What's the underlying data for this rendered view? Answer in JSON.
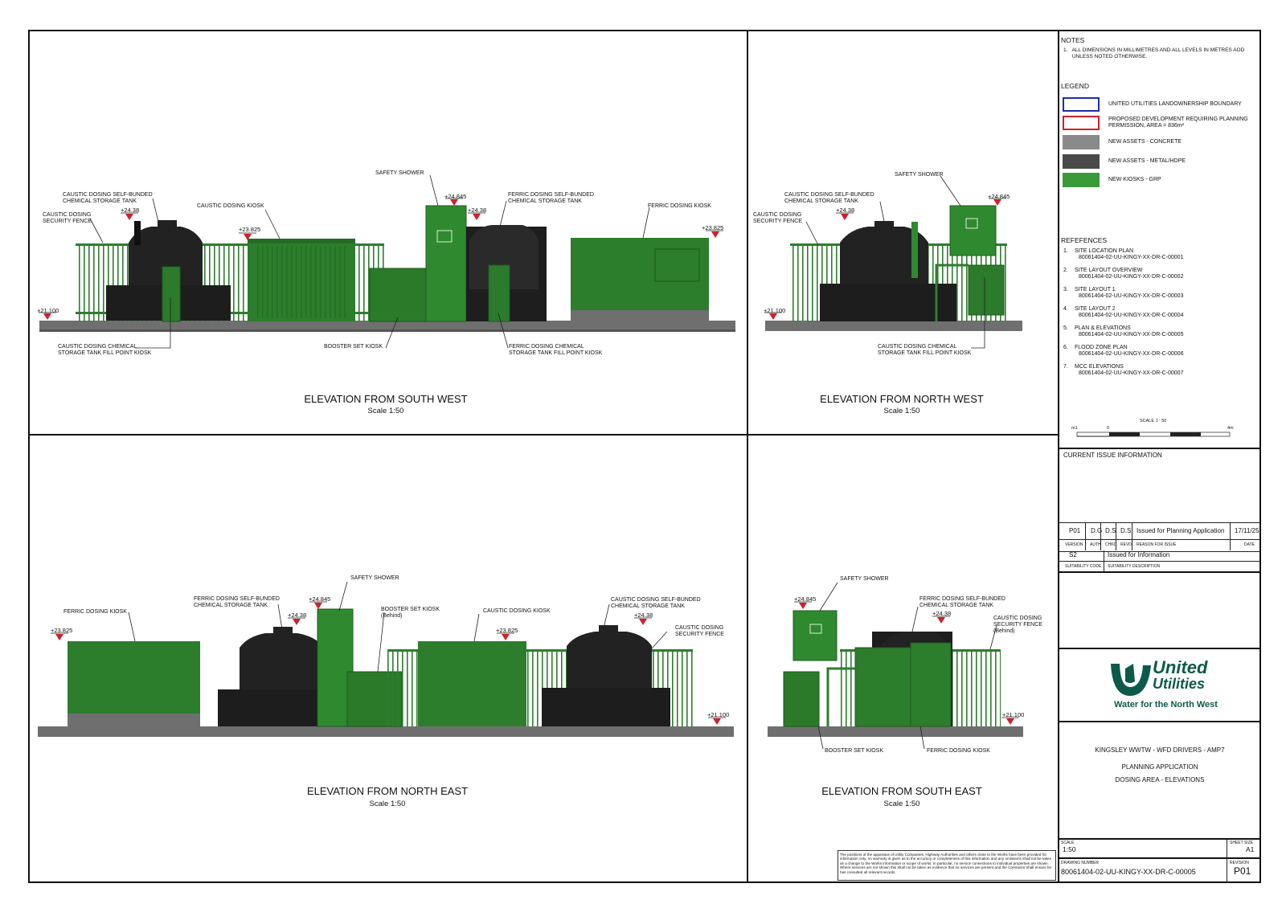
{
  "notes": {
    "heading": "NOTES",
    "items": [
      "1.   ALL DIMENSIONS IN MILLIMETRES AND ALL LEVELS IN METRES AOD\n      UNLESS NOTED OTHERWISE."
    ]
  },
  "legend": {
    "heading": "LEGEND",
    "colors": {
      "boundary": "#1a2fb0",
      "development": "#d0202a",
      "concrete": "#8a8a8a",
      "metal": "#4a4a4a",
      "grp": "#3a9a3a"
    },
    "items": [
      "UNITED UTILITIES LANDOWNERSHIP BOUNDARY",
      "PROPOSED DEVELOPMENT REQUIRING PLANNING\nPERMISSION, AREA = 836m²",
      "NEW ASSETS - CONCRETE",
      "NEW ASSETS - METAL/HDPE",
      "NEW KIOSKS - GRP"
    ]
  },
  "references": {
    "heading": "REFEFENCES",
    "items": [
      {
        "n": "1.",
        "title": "SITE LOCATION PLAN",
        "code": "80061404-02-UU-KINGY-XX-DR-C-00001"
      },
      {
        "n": "2.",
        "title": "SITE LAYOUT OVERVIEW",
        "code": "80061404-02-UU-KINGY-XX-DR-C-00002"
      },
      {
        "n": "3.",
        "title": "SITE LAYOUT 1",
        "code": "80061404-02-UU-KINGY-XX-DR-C-00003"
      },
      {
        "n": "4.",
        "title": "SITE LAYOUT 2",
        "code": "80061404-02-UU-KINGY-XX-DR-C-00004"
      },
      {
        "n": "5.",
        "title": "PLAN & ELEVATIONS",
        "code": "80061404-02-UU-KINGY-XX-DR-C-00005"
      },
      {
        "n": "6.",
        "title": "FLOOD ZONE PLAN",
        "code": "80061404-02-UU-KINGY-XX-DR-C-00006"
      },
      {
        "n": "7.",
        "title": "MCC ELEVATIONS",
        "code": "80061404-02-UU-KINGY-XX-DR-C-00007"
      }
    ]
  },
  "scalebar": {
    "label": "SCALE 1 : 50",
    "left": "m1",
    "zero": "0",
    "right": "4m"
  },
  "issue": {
    "heading": "CURRENT ISSUE INFORMATION",
    "version": "P01",
    "auth": "D.G",
    "chkd": "D.S",
    "revd": "D.S",
    "reason": "Issued for Planning Application",
    "date": "17/11/25",
    "h_version": "VERSION",
    "h_auth": "AUTH",
    "h_chkd": "CHKD",
    "h_revd": "REVD",
    "h_reason": "REASON FOR ISSUE",
    "h_date": "DATE",
    "suit_code": "S2",
    "suit_desc": "Issued for Information",
    "h_suit_code": "SUITABILITY CODE",
    "h_suit_desc": "SUITABILITY DESCRIPTION"
  },
  "logo": {
    "line1": "United",
    "line2": "Utilities",
    "tagline": "Water for the North West",
    "color": "#0d5a4a"
  },
  "project": {
    "line1": "KINGSLEY WWTW - WFD DRIVERS - AMP7",
    "line2": "PLANNING APPLICATION",
    "line3": "DOSING AREA - ELEVATIONS"
  },
  "titleblock": {
    "h_scale": "SCALE",
    "scale": "1:50",
    "h_sheet": "SHEET SIZE",
    "sheet": "A1",
    "h_drawing": "DRAWING NUMBER",
    "drawing": "80061404-02-UU-KINGY-XX-DR-C-00005",
    "h_revision": "REVISION",
    "revision": "P01"
  },
  "disclaimer": "The positions of the apparatus of Utility Companies, Highway Authorities and others close to the Works have been provided for information only, no warranty is given as to the accuracy or completeness of this information and any omissions shall not be taken as a change to the Works information or scope of works. In particular, no service connections to individual properties are shown. Where services are not shown this shall not be taken as evidence that no services are present and the Contractor shall ensure he has consulted all relevant records.",
  "views": {
    "sw": {
      "title": "ELEVATION FROM SOUTH WEST",
      "scale": "Scale 1:50",
      "labels": {
        "caustic_tank": "CAUSTIC DOSING SELF-BUNDED\nCHEMICAL STORAGE TANK",
        "caustic_fence": "CAUSTIC DOSING\nSECURITY FENCE",
        "caustic_kiosk": "CAUSTIC DOSING KIOSK",
        "safety_shower": "SAFETY SHOWER",
        "ferric_tank": "FERRIC DOSING SELF-BUNDED\nCHEMICAL STORAGE TANK",
        "ferric_kiosk": "FERRIC DOSING KIOSK",
        "caustic_fill": "CAUSTIC DOSING CHEMICAL\nSTORAGE TANK FILL POINT KIOSK",
        "booster": "BOOSTER SET KIOSK",
        "ferric_fill": "FERRIC DOSING CHEMICAL\nSTORAGE TANK FILL POINT KIOSK"
      },
      "levels": {
        "l1": "+24.38",
        "l2": "+23.825",
        "l3": "+24.845",
        "l4": "+24.38",
        "l5": "+23.825",
        "l6": "+21.100"
      }
    },
    "nw": {
      "title": "ELEVATION FROM NORTH WEST",
      "scale": "Scale 1:50",
      "labels": {
        "caustic_tank": "CAUSTIC DOSING SELF-BUNDED\nCHEMICAL STORAGE TANK",
        "caustic_fence": "CAUSTIC DOSING\nSECURITY FENCE",
        "safety_shower": "SAFETY SHOWER",
        "caustic_fill": "CAUSTIC DOSING CHEMICAL\nSTORAGE TANK FILL POINT KIOSK"
      },
      "levels": {
        "l1": "+24.38",
        "l2": "+24.845",
        "l3": "+21.100"
      }
    },
    "ne": {
      "title": "ELEVATION FROM NORTH EAST",
      "scale": "Scale 1:50",
      "labels": {
        "ferric_kiosk": "FERRIC DOSING KIOSK",
        "ferric_tank": "FERRIC DOSING SELF-BUNDED\nCHEMICAL STORAGE TANK",
        "safety_shower": "SAFETY SHOWER",
        "booster": "BOOSTER SET KIOSK\n(Behind)",
        "caustic_kiosk": "CAUSTIC DOSING KIOSK",
        "caustic_tank": "CAUSTIC DOSING SELF-BUNDED\nCHEMICAL STORAGE TANK",
        "caustic_fence": "CAUSTIC DOSING\nSECURITY FENCE"
      },
      "levels": {
        "l1": "+23.825",
        "l2": "+24.38",
        "l3": "+24.845",
        "l4": "+23.825",
        "l5": "+24.38",
        "l6": "+21.100"
      }
    },
    "se": {
      "title": "ELEVATION FROM SOUTH EAST",
      "scale": "Scale 1:50",
      "labels": {
        "safety_shower": "SAFETY SHOWER",
        "ferric_tank": "FERRIC DOSING SELF-BUNDED\nCHEMICAL STORAGE TANK",
        "caustic_fence": "CAUSTIC DOSING\nSECURITY FENCE\n(Behind)",
        "booster": "BOOSTER SET KIOSK",
        "ferric_kiosk": "FERRIC DOSING KIOSK"
      },
      "levels": {
        "l1": "+24.845",
        "l2": "+24.38",
        "l3": "+21.100"
      }
    }
  }
}
